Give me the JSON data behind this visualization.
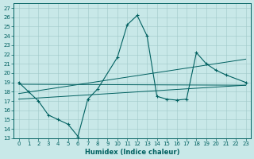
{
  "xlabel": "Humidex (Indice chaleur)",
  "bg_color": "#c8e8e8",
  "line_color": "#006060",
  "grid_color": "#a0c8c8",
  "xlim": [
    -0.5,
    23.5
  ],
  "ylim": [
    13,
    27.5
  ],
  "yticks": [
    13,
    14,
    15,
    16,
    17,
    18,
    19,
    20,
    21,
    22,
    23,
    24,
    25,
    26,
    27
  ],
  "xticks": [
    0,
    1,
    2,
    3,
    4,
    5,
    6,
    7,
    8,
    9,
    10,
    11,
    12,
    13,
    14,
    15,
    16,
    17,
    18,
    19,
    20,
    21,
    22,
    23
  ],
  "main_line": {
    "x": [
      0,
      1,
      2,
      3,
      4,
      5,
      6,
      7,
      8,
      10,
      11,
      12,
      13,
      14,
      15,
      16,
      17,
      18,
      19,
      20,
      21,
      23
    ],
    "y": [
      19,
      18,
      17,
      15.5,
      15,
      14.5,
      13.2,
      17.2,
      18.3,
      21.7,
      25.2,
      26.2,
      24,
      17.5,
      17.2,
      17.1,
      17.2,
      22.2,
      21,
      20.3,
      19.8,
      19
    ]
  },
  "regression_lines": [
    {
      "x": [
        0,
        23
      ],
      "y": [
        18.8,
        18.7
      ]
    },
    {
      "x": [
        0,
        23
      ],
      "y": [
        17.8,
        21.5
      ]
    },
    {
      "x": [
        0,
        23
      ],
      "y": [
        17.2,
        18.7
      ]
    }
  ]
}
